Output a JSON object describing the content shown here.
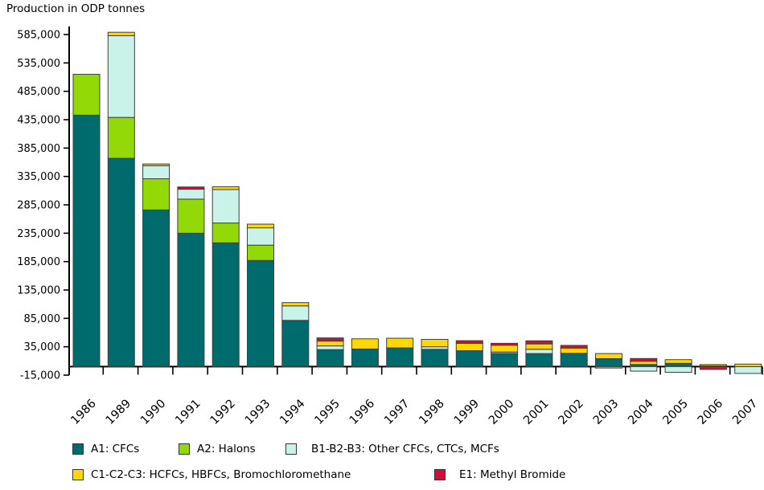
{
  "title": "Production in ODP tonnes",
  "chart_data": {
    "type": "bar",
    "stacked": true,
    "title": "Production in ODP tonnes",
    "grid": false,
    "background": "#ffffff",
    "axis_color": "#000000",
    "bar_border_color": "#3f3f3f",
    "legend_position": "bottom",
    "categories": [
      "1986",
      "1989",
      "1990",
      "1991",
      "1992",
      "1993",
      "1994",
      "1995",
      "1996",
      "1997",
      "1998",
      "1999",
      "2000",
      "2001",
      "2002",
      "2003",
      "2004",
      "2005",
      "2006",
      "2007"
    ],
    "series": [
      {
        "name": "A1: CFCs",
        "color": "#006b6c",
        "values": [
          443000,
          367000,
          276000,
          235000,
          218000,
          187000,
          81500,
          30000,
          31000,
          33000,
          30500,
          28000,
          23200,
          23000,
          23500,
          14000,
          3800,
          5800,
          1300,
          0
        ]
      },
      {
        "name": "A2: Halons",
        "color": "#93d908",
        "values": [
          72000,
          72000,
          55000,
          60000,
          35000,
          27000,
          0,
          0,
          0,
          0,
          0,
          0,
          0,
          0,
          0,
          -2500,
          0,
          0,
          0,
          0
        ]
      },
      {
        "name": "B1-B2-B3: Other CFCs, CTCs, MCFs",
        "color": "#c9f3e8",
        "values": [
          0,
          144000,
          23000,
          17500,
          59000,
          30500,
          25500,
          6500,
          0,
          0,
          4500,
          0,
          2500,
          7500,
          0,
          0,
          -8000,
          -10000,
          0,
          -12000
        ]
      },
      {
        "name": "C1-C2-C3: HCFCs, HBFCs, Bromochloromethane",
        "color": "#ffd703",
        "values": [
          0,
          6000,
          3000,
          0,
          5000,
          6500,
          5800,
          8500,
          18000,
          17000,
          13000,
          13000,
          12000,
          9500,
          9200,
          9000,
          5700,
          6500,
          2400,
          4400
        ]
      },
      {
        "name": "E1: Methyl Bromide",
        "color": "#cc1039",
        "values": [
          0,
          0,
          0,
          4000,
          0,
          0,
          0,
          5600,
          0,
          0,
          0,
          4700,
          3400,
          5500,
          4700,
          0,
          4800,
          0,
          -5000,
          0
        ]
      }
    ],
    "y_axis": {
      "min": -15000,
      "max": 585000,
      "step": 50000,
      "tick_labels": [
        "585,000",
        "535,000",
        "485,000",
        "435,000",
        "385,000",
        "335,000",
        "285,000",
        "235,000",
        "185,000",
        "135,000",
        "85,000",
        "35,000",
        "-15,000"
      ]
    }
  }
}
